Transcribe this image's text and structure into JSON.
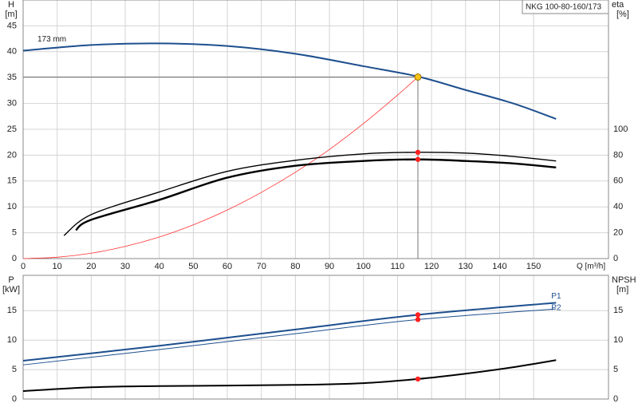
{
  "chart_data": [
    {
      "type": "line",
      "title": "NKG 100-80-160/173",
      "ylabel": "H",
      "yunit": "[m]",
      "y2label": "eta",
      "y2unit": "[%]",
      "xlabel": "Q [m³/h]",
      "xlim": [
        0,
        172
      ],
      "xticks": [
        0,
        10,
        20,
        30,
        40,
        50,
        60,
        70,
        80,
        90,
        100,
        110,
        120,
        130,
        140,
        150
      ],
      "ylim": [
        0,
        50
      ],
      "yticks": [
        0,
        5,
        10,
        15,
        20,
        25,
        30,
        35,
        40,
        45
      ],
      "y2lim": [
        0,
        200
      ],
      "y2ticks": [
        0,
        20,
        40,
        60,
        80,
        100
      ],
      "grid": true,
      "series": [
        {
          "name": "173 mm",
          "color": "#1d4f8e",
          "x": [
            0,
            20,
            40,
            60,
            80,
            100,
            116,
            130,
            144,
            156.6
          ],
          "values": [
            40.2,
            41.3,
            41.6,
            41.1,
            39.6,
            37.2,
            35.2,
            32.6,
            30,
            27
          ]
        },
        {
          "color": "#ff3030",
          "x": [
            0,
            10,
            20,
            30,
            40,
            50,
            60,
            70,
            80,
            90,
            100,
            110,
            116
          ],
          "values": [
            0,
            0.26,
            1.04,
            2.35,
            4.17,
            6.52,
            9.39,
            12.8,
            16.7,
            21.1,
            26.1,
            31.6,
            35.1
          ]
        },
        {
          "color": "#000000",
          "axis": "y2",
          "x": [
            12,
            20,
            40,
            60,
            80,
            100,
            116,
            130,
            144,
            156.6
          ],
          "values": [
            17.8,
            34,
            51.5,
            67.5,
            76,
            81,
            82.2,
            81.6,
            79,
            75.5
          ]
        },
        {
          "color": "#000000",
          "axis": "y2",
          "x": [
            15.5,
            20,
            40,
            60,
            80,
            100,
            116,
            130,
            144,
            156.6
          ],
          "values": [
            22,
            30,
            45.4,
            62.6,
            71.8,
            75.5,
            76.7,
            75.5,
            73.6,
            70.5
          ]
        }
      ],
      "markers": [
        {
          "x": 116,
          "y": 35.1,
          "color": "#f5c518"
        },
        {
          "x": 116,
          "y": 82.2,
          "axis": "y2",
          "color": "#ff2020"
        },
        {
          "x": 116,
          "y": 76.7,
          "axis": "y2",
          "color": "#ff2020"
        }
      ]
    },
    {
      "type": "line",
      "ylabel": "P",
      "yunit": "[kW]",
      "y2label": "NPSH",
      "y2unit": "[m]",
      "xlim": [
        0,
        172
      ],
      "xgrid": [
        10,
        20,
        30,
        40,
        50,
        60,
        70,
        80,
        90,
        100,
        110,
        120,
        130,
        140,
        150
      ],
      "ylim": [
        0,
        21
      ],
      "yticks": [
        0,
        5,
        10,
        15
      ],
      "y2lim": [
        0,
        21
      ],
      "y2ticks": [
        0,
        5,
        10,
        15
      ],
      "grid": true,
      "series": [
        {
          "name": "P1",
          "color": "#1d4f8e",
          "x": [
            0,
            40,
            80,
            116,
            156.6
          ],
          "values": [
            6.5,
            9.05,
            11.8,
            14.3,
            16.35
          ]
        },
        {
          "name": "P2",
          "color": "#1d4f8e",
          "x": [
            0,
            40,
            80,
            116,
            156.6
          ],
          "values": [
            5.8,
            8.4,
            11.1,
            13.5,
            15.3
          ]
        },
        {
          "color": "#000000",
          "axis": "y2",
          "x": [
            0,
            20,
            40,
            80,
            100,
            116,
            130,
            144,
            156.6
          ],
          "values": [
            1.35,
            2,
            2.2,
            2.4,
            2.7,
            3.4,
            4.3,
            5.4,
            6.6
          ]
        }
      ],
      "markers": [
        {
          "x": 116,
          "y": 14.3,
          "color": "#ff2020"
        },
        {
          "x": 116,
          "y": 13.5,
          "color": "#ff2020"
        },
        {
          "x": 116,
          "y": 3.4,
          "axis": "y2",
          "color": "#ff2020"
        }
      ]
    }
  ]
}
